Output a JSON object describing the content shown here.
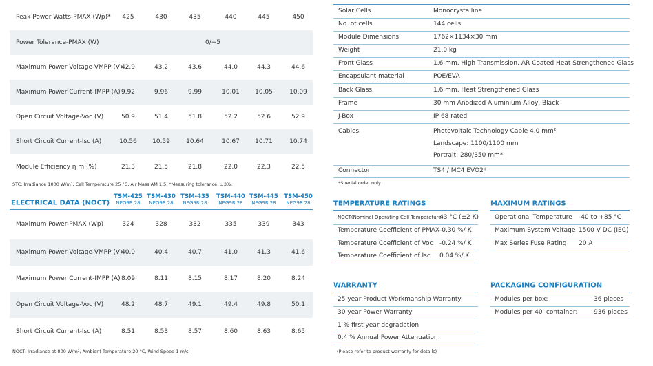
{
  "stc_table": {
    "rows": [
      {
        "label": "Peak Power Watts-PMAX (Wp)*",
        "values": [
          "425",
          "430",
          "435",
          "440",
          "445",
          "450"
        ]
      },
      {
        "label": "Power Tolerance-PMAX (W)",
        "values": [
          "0/+5"
        ]
      },
      {
        "label": "Maximum Power Voltage-VMPP (V)",
        "values": [
          "42.9",
          "43.2",
          "43.6",
          "44.0",
          "44.3",
          "44.6"
        ]
      },
      {
        "label": "Maximum Power Current-IMPP (A)",
        "values": [
          "9.92",
          "9.96",
          "9.99",
          "10.01",
          "10.05",
          "10.09"
        ]
      },
      {
        "label": "Open Circuit Voltage-Voc (V)",
        "values": [
          "50.9",
          "51.4",
          "51.8",
          "52.2",
          "52.6",
          "52.9"
        ]
      },
      {
        "label": "Short Circuit Current-Isc (A)",
        "values": [
          "10.56",
          "10.59",
          "10.64",
          "10.67",
          "10.71",
          "10.74"
        ]
      },
      {
        "label": "Module Efficiency η m (%)",
        "values": [
          "21.3",
          "21.5",
          "21.8",
          "22.0",
          "22.3",
          "22.5"
        ]
      }
    ],
    "note": "STC: Irradiance 1000 W/m², Cell Temperature 25 °C, Air Mass AM 1.5. *Measuring tolerance: ±3%."
  },
  "noct_table": {
    "title": "ELECTRICAL DATA (NOCT)",
    "models": [
      {
        "name": "TSM-425",
        "sub": "NEG9R.28"
      },
      {
        "name": "TSM-430",
        "sub": "NEG9R.28"
      },
      {
        "name": "TSM-435",
        "sub": "NEG9R.28"
      },
      {
        "name": "TSM-440",
        "sub": "NEG9R.28"
      },
      {
        "name": "TSM-445",
        "sub": "NEG9R.28"
      },
      {
        "name": "TSM-450",
        "sub": "NEG9R.28"
      }
    ],
    "rows": [
      {
        "label": "Maximum Power-PMAX (Wp)",
        "values": [
          "324",
          "328",
          "332",
          "335",
          "339",
          "343"
        ]
      },
      {
        "label": "Maximum Power Voltage-VMPP (V)",
        "values": [
          "40.0",
          "40.4",
          "40.7",
          "41.0",
          "41.3",
          "41.6"
        ]
      },
      {
        "label": "Maximum Power Current-IMPP (A)",
        "values": [
          "8.09",
          "8.11",
          "8.15",
          "8.17",
          "8.20",
          "8.24"
        ]
      },
      {
        "label": "Open Circuit Voltage-Voc (V)",
        "values": [
          "48.2",
          "48.7",
          "49.1",
          "49.4",
          "49.8",
          "50.1"
        ]
      },
      {
        "label": "Short Circuit Current-Isc (A)",
        "values": [
          "8.51",
          "8.53",
          "8.57",
          "8.60",
          "8.63",
          "8.65"
        ]
      }
    ],
    "note": "NOCT: Irradiance at 800 W/m², Ambient Temperature 20 °C, Wind Speed 1 m/s."
  },
  "mechanical": {
    "rows": [
      {
        "label": "Solar Cells",
        "value": [
          "Monocrystalline"
        ]
      },
      {
        "label": "No. of cells",
        "value": [
          "144 cells"
        ]
      },
      {
        "label": "Module Dimensions",
        "value": [
          "1762×1134×30 mm"
        ]
      },
      {
        "label": "Weight",
        "value": [
          "21.0 kg"
        ]
      },
      {
        "label": "Front Glass",
        "value": [
          "1.6 mm, High Transmission, AR Coated Heat Strengthened Glass"
        ]
      },
      {
        "label": "Encapsulant material",
        "value": [
          "POE/EVA"
        ]
      },
      {
        "label": "Back Glass",
        "value": [
          "1.6 mm, Heat Strengthened Glass"
        ]
      },
      {
        "label": "Frame",
        "value": [
          "30 mm Anodized Aluminium Alloy, Black"
        ]
      },
      {
        "label": "J-Box",
        "value": [
          "IP 68 rated"
        ]
      },
      {
        "label": "Cables",
        "value": [
          "Photovoltaic Technology Cable 4.0 mm²",
          "Landscape: 1100/1100 mm",
          "Portrait: 280/350 mm*"
        ]
      },
      {
        "label": "Connector",
        "value": [
          "TS4 / MC4 EVO2*"
        ]
      }
    ],
    "note": "*Special order only"
  },
  "temperature": {
    "title": "TEMPERATURE RATINGS",
    "rows": [
      {
        "label": "NOCT(Nominal Operating Cell Temperature)",
        "value": "43 °C (±2 K)"
      },
      {
        "label": "Temperature Coefficient of PMAX",
        "value": "-0.30 %/ K"
      },
      {
        "label": "Temperature Coefficient of Voc",
        "value": "-0.24 %/ K"
      },
      {
        "label": "Temperature Coefficient of Isc",
        "value": "0.04 %/ K"
      }
    ]
  },
  "maximum": {
    "title": "MAXIMUM RATINGS",
    "rows": [
      {
        "label": "Operational Temperature",
        "value": "-40 to +85 °C"
      },
      {
        "label": "Maximum System Voltage",
        "value": "1500 V DC (IEC)"
      },
      {
        "label": "Max Series Fuse Rating",
        "value": "20 A"
      }
    ]
  },
  "warranty": {
    "title": "WARRANTY",
    "rows": [
      "25 year Product Workmanship Warranty",
      "30 year Power Warranty",
      "1 % first year degradation",
      "0.4 % Annual Power Attenuation"
    ],
    "note": "(Please refer to product warranty for details)"
  },
  "packaging": {
    "title": "PACKAGING CONFIGURATION",
    "rows": [
      {
        "label": "Modules per box:",
        "value": "36 pieces"
      },
      {
        "label": "Modules per 40' container:",
        "value": "936 pieces"
      }
    ]
  }
}
